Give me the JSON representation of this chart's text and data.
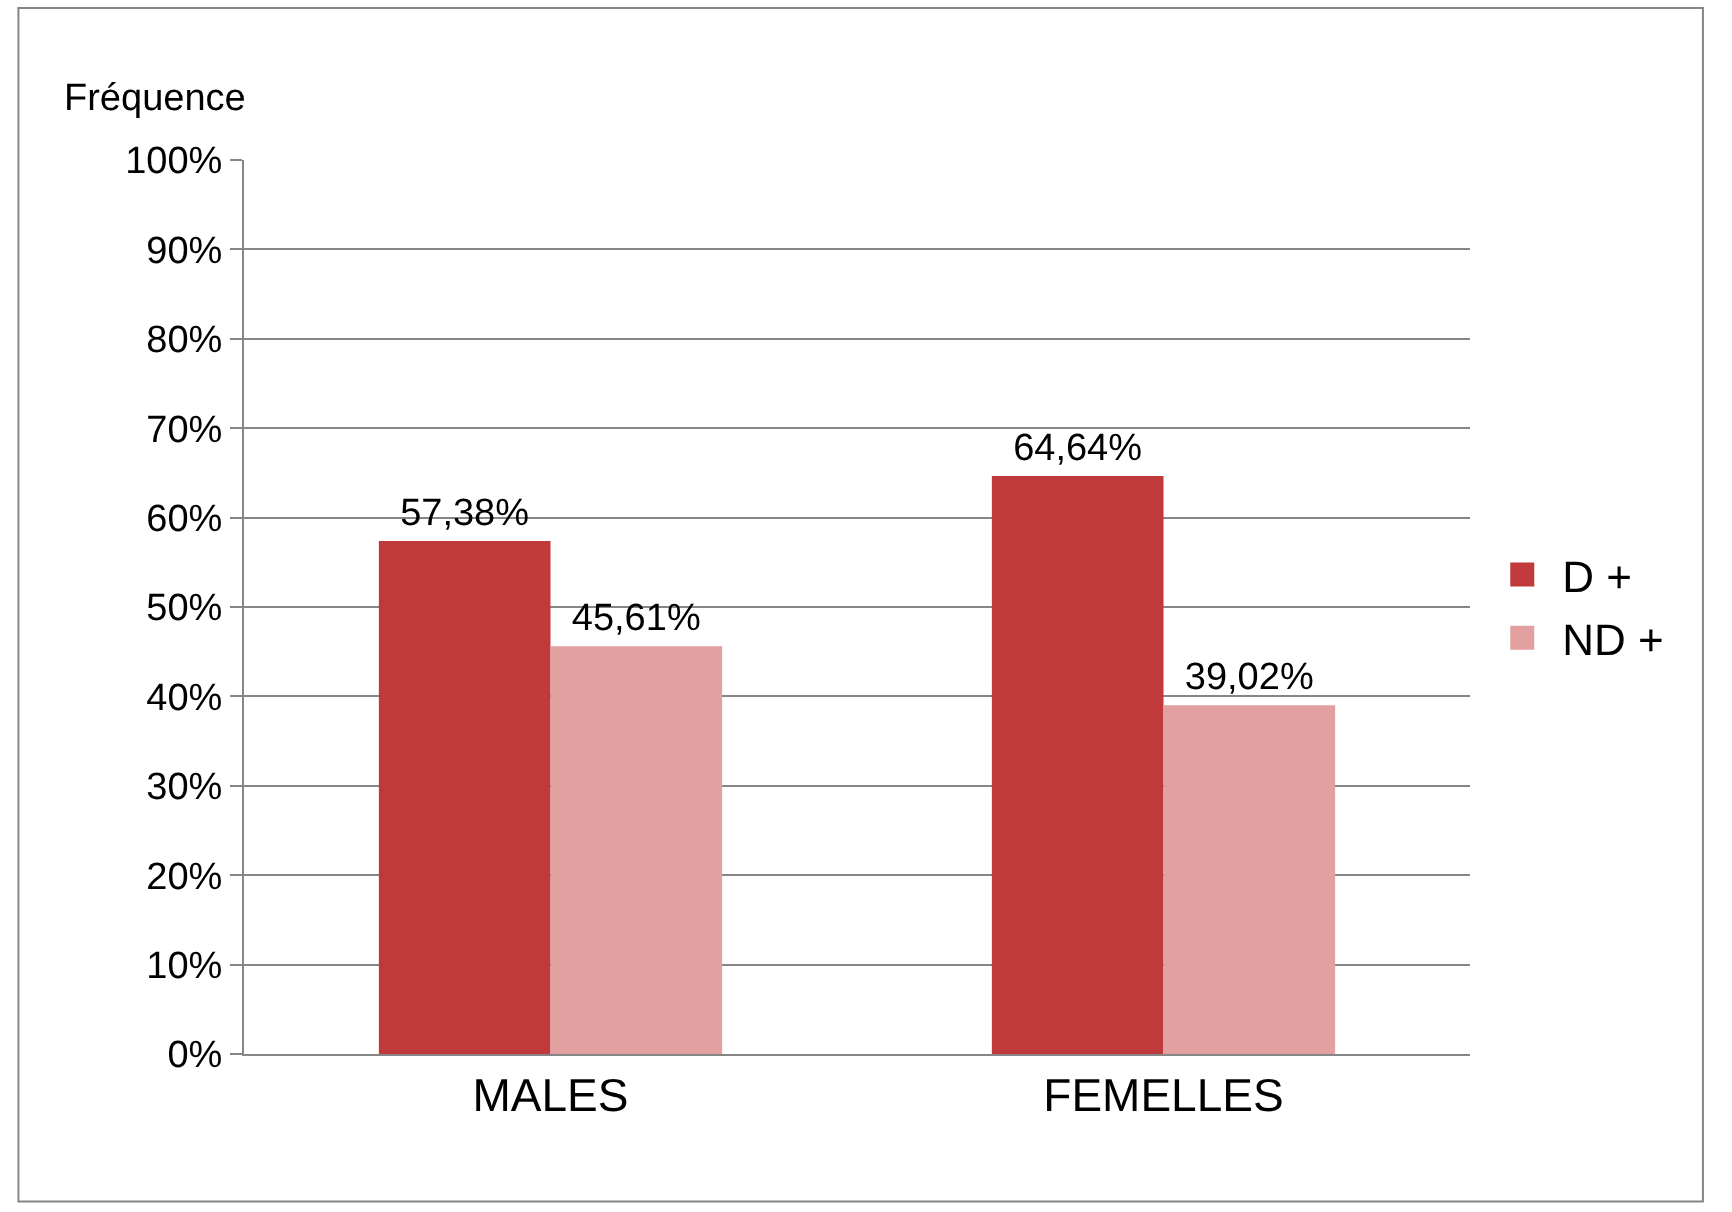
{
  "chart_data": {
    "type": "bar",
    "ylabel": "Fréquence",
    "categories": [
      "MALES",
      "FEMELLES"
    ],
    "series": [
      {
        "name": "D +",
        "color": "#c0393b",
        "values": [
          57.38,
          64.64
        ],
        "value_labels": [
          "57,38%",
          "64,64%"
        ]
      },
      {
        "name": "ND +",
        "color": "#e3a0a0",
        "values": [
          45.61,
          39.02
        ],
        "value_labels": [
          "45,61%",
          "39,02%"
        ]
      }
    ],
    "ylim": [
      0,
      100
    ],
    "yticks": [
      {
        "value": 0,
        "label": "0%"
      },
      {
        "value": 10,
        "label": "10%"
      },
      {
        "value": 20,
        "label": "20%"
      },
      {
        "value": 30,
        "label": "30%"
      },
      {
        "value": 40,
        "label": "40%"
      },
      {
        "value": 50,
        "label": "50%"
      },
      {
        "value": 60,
        "label": "60%"
      },
      {
        "value": 70,
        "label": "70%"
      },
      {
        "value": 80,
        "label": "80%"
      },
      {
        "value": 90,
        "label": "90%"
      },
      {
        "value": 100,
        "label": "100%"
      }
    ],
    "grid": "y",
    "legend": "right"
  }
}
